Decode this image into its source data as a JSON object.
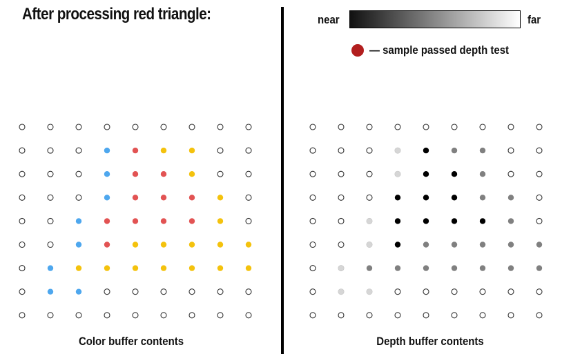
{
  "title": "After processing red triangle:",
  "legend": {
    "near_label": "near",
    "far_label": "far",
    "key_label": "— sample passed depth test",
    "key_color": "#b21e1e"
  },
  "palette": {
    "empty": "#ffffff",
    "blue": "#4ea7ee",
    "red": "#e25353",
    "yellow": "#f4c20d",
    "depth_near": "#000000",
    "depth_mid": "#808080",
    "depth_far": "#d6d6d6"
  },
  "color_buffer": {
    "caption": "Color buffer contents",
    "rows": [
      [
        ".",
        ".",
        ".",
        ".",
        ".",
        ".",
        ".",
        ".",
        "."
      ],
      [
        ".",
        ".",
        ".",
        "B",
        "R",
        "Y",
        "Y",
        ".",
        "."
      ],
      [
        ".",
        ".",
        ".",
        "B",
        "R",
        "R",
        "Y",
        ".",
        "."
      ],
      [
        ".",
        ".",
        ".",
        "B",
        "R",
        "R",
        "R",
        "Y",
        "."
      ],
      [
        ".",
        ".",
        "B",
        "R",
        "R",
        "R",
        "R",
        "Y",
        "."
      ],
      [
        ".",
        ".",
        "B",
        "R",
        "Y",
        "Y",
        "Y",
        "Y",
        "Y"
      ],
      [
        ".",
        "B",
        "Y",
        "Y",
        "Y",
        "Y",
        "Y",
        "Y",
        "Y"
      ],
      [
        ".",
        "B",
        "B",
        ".",
        ".",
        ".",
        ".",
        ".",
        "."
      ],
      [
        ".",
        ".",
        ".",
        ".",
        ".",
        ".",
        ".",
        ".",
        "."
      ]
    ]
  },
  "depth_buffer": {
    "caption": "Depth buffer contents",
    "rows": [
      [
        ".",
        ".",
        ".",
        ".",
        ".",
        ".",
        ".",
        ".",
        "."
      ],
      [
        ".",
        ".",
        ".",
        "L",
        "K",
        "M",
        "M",
        ".",
        "."
      ],
      [
        ".",
        ".",
        ".",
        "L",
        "K",
        "K",
        "M",
        ".",
        "."
      ],
      [
        ".",
        ".",
        ".",
        "K",
        "K",
        "K",
        "M",
        "M",
        "."
      ],
      [
        ".",
        ".",
        "L",
        "K",
        "K",
        "K",
        "K",
        "M",
        "."
      ],
      [
        ".",
        ".",
        "L",
        "K",
        "M",
        "M",
        "M",
        "M",
        "M"
      ],
      [
        ".",
        "L",
        "M",
        "M",
        "M",
        "M",
        "M",
        "M",
        "M"
      ],
      [
        ".",
        "L",
        "L",
        ".",
        ".",
        ".",
        ".",
        ".",
        "."
      ],
      [
        ".",
        ".",
        ".",
        ".",
        ".",
        ".",
        ".",
        ".",
        "."
      ]
    ]
  }
}
